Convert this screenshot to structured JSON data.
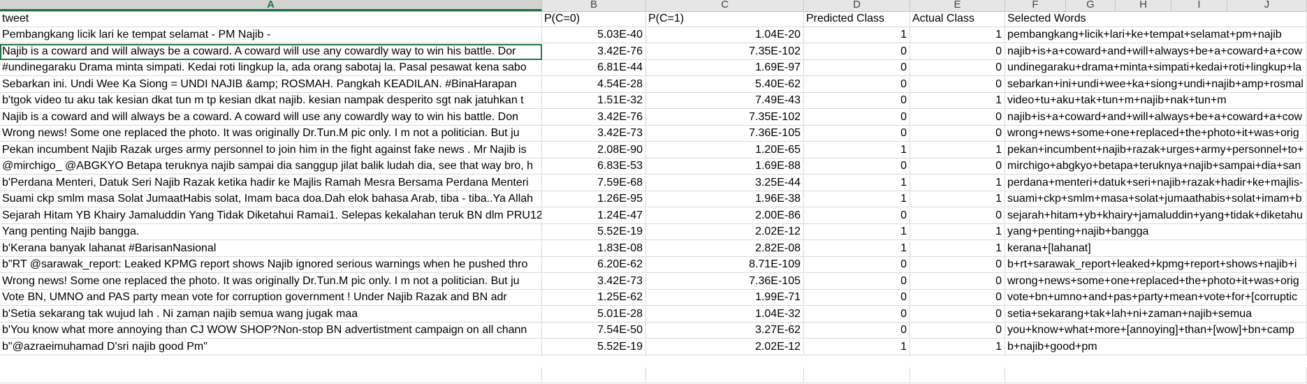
{
  "columns": {
    "letters": [
      "A",
      "B",
      "C",
      "D",
      "E",
      "F",
      "G",
      "H",
      "I",
      "J"
    ],
    "selected": "A"
  },
  "header": {
    "tweet": "tweet",
    "pc0": "P(C=0)",
    "pc1": "P(C=1)",
    "predicted": "Predicted Class",
    "actual": "Actual Class",
    "selected_words": "Selected Words"
  },
  "rows": [
    {
      "tweet": "Pembangkang licik lari ke tempat selamat - PM Najib -",
      "pc0": "5.03E-40",
      "pc1": "1.04E-20",
      "predicted": "1",
      "actual": "1",
      "words": "pembangkang+licik+lari+ke+tempat+selamat+pm+najib"
    },
    {
      "tweet": "Najib is a coward and will always be a coward. A coward will use any cowardly way to win his battle. Dor",
      "pc0": "3.42E-76",
      "pc1": "7.35E-102",
      "predicted": "0",
      "actual": "0",
      "words": "najib+is+a+coward+and+will+always+be+a+coward+a+cow"
    },
    {
      "tweet": "#undinegaraku Drama minta simpati. Kedai roti lingkup la, ada orang sabotaj la. Pasal pesawat kena sabo",
      "pc0": "6.81E-44",
      "pc1": "1.69E-97",
      "predicted": "0",
      "actual": "0",
      "words": "undinegaraku+drama+minta+simpati+kedai+roti+lingkup+la"
    },
    {
      "tweet": "Sebarkan ini. Undi Wee Ka Siong = UNDI NAJIB &amp; ROSMAH. Pangkah KEADILAN. #BinaHarapan",
      "pc0": "4.54E-28",
      "pc1": "5.40E-62",
      "predicted": "0",
      "actual": "0",
      "words": "sebarkan+ini+undi+wee+ka+siong+undi+najib+amp+rosmal"
    },
    {
      "tweet": "b'tgok video tu aku tak kesian dkat tun m tp kesian dkat najib. kesian nampak desperito sgt nak jatuhkan t",
      "pc0": "1.51E-32",
      "pc1": "7.49E-43",
      "predicted": "0",
      "actual": "1",
      "words": "video+tu+aku+tak+tun+m+najib+nak+tun+m"
    },
    {
      "tweet": "Najib is a coward and will always be a coward. A coward will use any cowardly way to win his battle. Don",
      "pc0": "3.42E-76",
      "pc1": "7.35E-102",
      "predicted": "0",
      "actual": "0",
      "words": "najib+is+a+coward+and+will+always+be+a+coward+a+cow"
    },
    {
      "tweet": "Wrong news! Some one replaced the photo. It was originally Dr.Tun.M pic only. I m not a politician. But ju",
      "pc0": "3.42E-73",
      "pc1": "7.36E-105",
      "predicted": "0",
      "actual": "0",
      "words": "wrong+news+some+one+replaced+the+photo+it+was+orig"
    },
    {
      "tweet": "Pekan incumbent Najib Razak urges army personnel to join him in the fight against fake news . Mr Najib is",
      "pc0": "2.08E-90",
      "pc1": "1.20E-65",
      "predicted": "1",
      "actual": "1",
      "words": "pekan+incumbent+najib+razak+urges+army+personnel+to+"
    },
    {
      "tweet": "@mirchigo_ @ABGKYO Betapa teruknya najib sampai dia sanggup jilat balik ludah dia, see that way bro, h",
      "pc0": "6.83E-53",
      "pc1": "1.69E-88",
      "predicted": "0",
      "actual": "0",
      "words": "mirchigo+abgkyo+betapa+teruknya+najib+sampai+dia+san"
    },
    {
      "tweet": "b'Perdana Menteri, Datuk Seri Najib Razak ketika hadir ke Majlis Ramah Mesra Bersama Perdana Menteri",
      "pc0": "7.59E-68",
      "pc1": "3.25E-44",
      "predicted": "1",
      "actual": "1",
      "words": "perdana+menteri+datuk+seri+najib+razak+hadir+ke+majlis-"
    },
    {
      "tweet": "Suami ckp smlm masa Solat JumaatHabis solat, Imam baca doa.Dah elok bahasa Arab, tiba - tiba..Ya Allah",
      "pc0": "1.26E-95",
      "pc1": "1.96E-38",
      "predicted": "1",
      "actual": "1",
      "words": "suami+ckp+smlm+masa+solat+jumaathabis+solat+imam+b"
    },
    {
      "tweet": "Sejarah Hitam YB Khairy Jamaluddin Yang Tidak Diketahui Ramai1. Selepas kekalahan teruk BN dlm PRU12",
      "pc0": "1.24E-47",
      "pc1": "2.00E-86",
      "predicted": "0",
      "actual": "0",
      "words": "sejarah+hitam+yb+khairy+jamaluddin+yang+tidak+diketahu"
    },
    {
      "tweet": "Yang penting Najib bangga.",
      "pc0": "5.52E-19",
      "pc1": "2.02E-12",
      "predicted": "1",
      "actual": "1",
      "words": "yang+penting+najib+bangga"
    },
    {
      "tweet": "b'Kerana banyak lahanat #BarisanNasional",
      "pc0": "1.83E-08",
      "pc1": "2.82E-08",
      "predicted": "1",
      "actual": "1",
      "words": "kerana+[lahanat]"
    },
    {
      "tweet": "b\"RT @sarawak_report: Leaked KPMG report shows Najib ignored serious warnings when he pushed thro",
      "pc0": "6.20E-62",
      "pc1": "8.71E-109",
      "predicted": "0",
      "actual": "0",
      "words": "b+rt+sarawak_report+leaked+kpmg+report+shows+najib+i"
    },
    {
      "tweet": "Wrong news! Some one replaced the photo. It was originally Dr.Tun.M pic only. I m not a politician. But ju",
      "pc0": "3.42E-73",
      "pc1": "7.36E-105",
      "predicted": "0",
      "actual": "0",
      "words": "wrong+news+some+one+replaced+the+photo+it+was+orig"
    },
    {
      "tweet": "Vote BN, UMNO and PAS party mean vote for corruption government !  Under      Najib Razak and BN adr",
      "pc0": "1.25E-62",
      "pc1": "1.99E-71",
      "predicted": "0",
      "actual": "0",
      "words": "vote+bn+umno+and+pas+party+mean+vote+for+[corruptic"
    },
    {
      "tweet": "b'Setia sekarang tak wujud lah . Ni zaman  najib semua wang jugak maa",
      "pc0": "5.01E-28",
      "pc1": "1.04E-32",
      "predicted": "0",
      "actual": "0",
      "words": "setia+sekarang+tak+lah+ni+zaman+najib+semua"
    },
    {
      "tweet": "b'You know what more annoying than CJ WOW SHOP?Non-stop BN advertistment campaign on all chann",
      "pc0": "7.54E-50",
      "pc1": "3.27E-62",
      "predicted": "0",
      "actual": "0",
      "words": "you+know+what+more+[annoying]+than+[wow]+bn+camp"
    },
    {
      "tweet": "b\"@azraeimuhamad D'sri najib good Pm\"",
      "pc0": "5.52E-19",
      "pc1": "2.02E-12",
      "predicted": "1",
      "actual": "1",
      "words": "b+najib+good+pm"
    }
  ]
}
